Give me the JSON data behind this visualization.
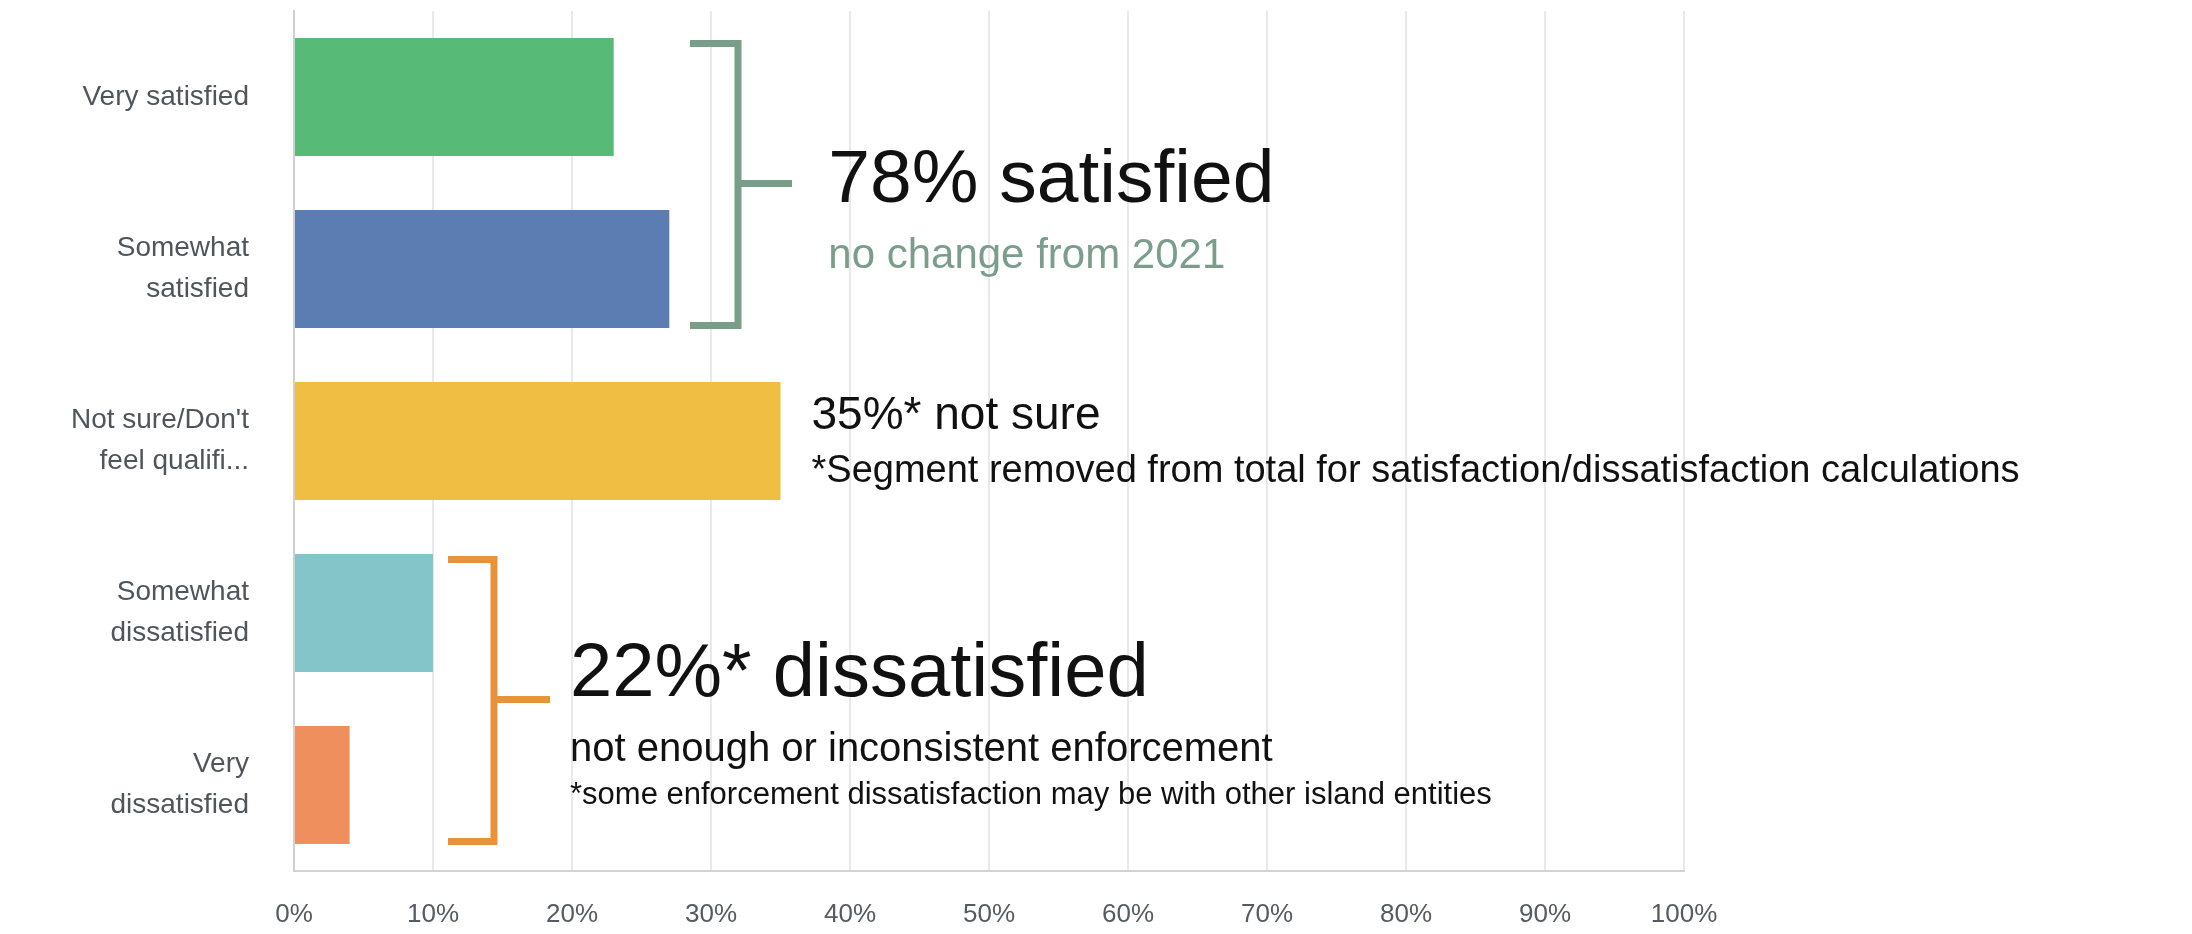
{
  "chart_data": {
    "type": "bar",
    "orientation": "horizontal",
    "categories": [
      "Very satisfied",
      "Somewhat satisfied",
      "Not sure/Don't feel qualifi...",
      "Somewhat dissatisfied",
      "Very dissatisfied"
    ],
    "values": [
      23,
      27,
      35,
      10,
      4
    ],
    "colors": [
      "#57bb77",
      "#5b7db1",
      "#efbe43",
      "#84c5ca",
      "#ef8f5d"
    ],
    "xlim": [
      0,
      100
    ],
    "xticks": [
      {
        "value": 0,
        "label": "0%"
      },
      {
        "value": 10,
        "label": "10%"
      },
      {
        "value": 20,
        "label": "20%"
      },
      {
        "value": 30,
        "label": "30%"
      },
      {
        "value": 40,
        "label": "40%"
      },
      {
        "value": 50,
        "label": "50%"
      },
      {
        "value": 60,
        "label": "60%"
      },
      {
        "value": 70,
        "label": "70%"
      },
      {
        "value": 80,
        "label": "80%"
      },
      {
        "value": 90,
        "label": "90%"
      },
      {
        "value": 100,
        "label": "100%"
      }
    ],
    "grid": "x",
    "annotations": [
      "78% satisfied",
      "no change from 2021",
      "35%* not sure",
      "*Segment removed from total for satisfaction/dissatisfaction calculations",
      "22%* dissatisfied",
      "not enough or inconsistent enforcement",
      "*some enforcement dissatisfaction may be with other island entities"
    ]
  }
}
